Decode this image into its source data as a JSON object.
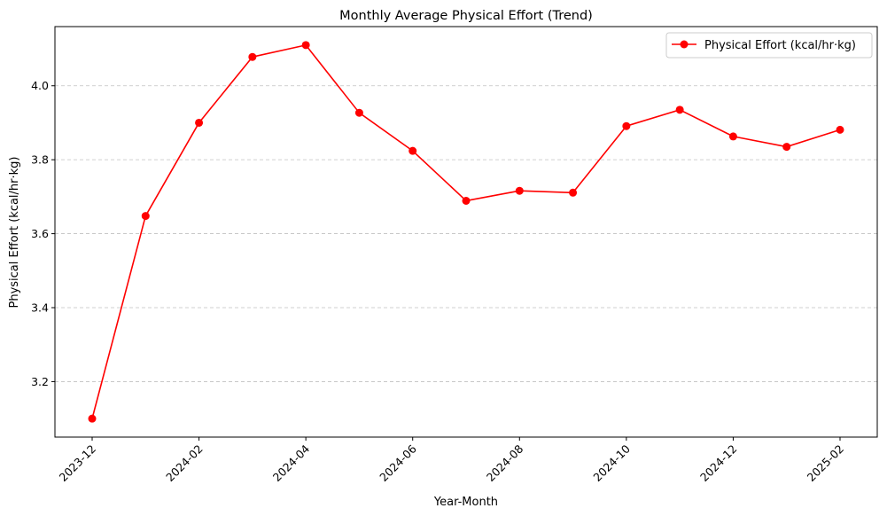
{
  "chart_data": {
    "type": "line",
    "title": "Monthly Average Physical Effort (Trend)",
    "xlabel": "Year-Month",
    "ylabel": "Physical Effort (kcal/hr·kg)",
    "x": [
      "2023-12",
      "2024-01",
      "2024-02",
      "2024-03",
      "2024-04",
      "2024-05",
      "2024-06",
      "2024-07",
      "2024-08",
      "2024-09",
      "2024-10",
      "2024-11",
      "2024-12",
      "2025-01",
      "2025-02"
    ],
    "x_tick_labels": [
      "2023-12",
      "2024-02",
      "2024-04",
      "2024-06",
      "2024-08",
      "2024-10",
      "2024-12",
      "2025-02"
    ],
    "series": [
      {
        "name": "Physical Effort (kcal/hr·kg)",
        "color": "#ff0000",
        "marker": "circle",
        "values": [
          3.1,
          3.648,
          3.9,
          4.078,
          4.11,
          3.927,
          3.824,
          3.689,
          3.716,
          3.711,
          3.891,
          3.935,
          3.863,
          3.835,
          3.881
        ]
      }
    ],
    "ylim": [
      3.05,
      4.16
    ],
    "y_ticks": [
      "3.2",
      "3.4",
      "3.6",
      "3.8",
      "4.0"
    ],
    "grid": "y-dashed",
    "legend_position": "top-right"
  }
}
